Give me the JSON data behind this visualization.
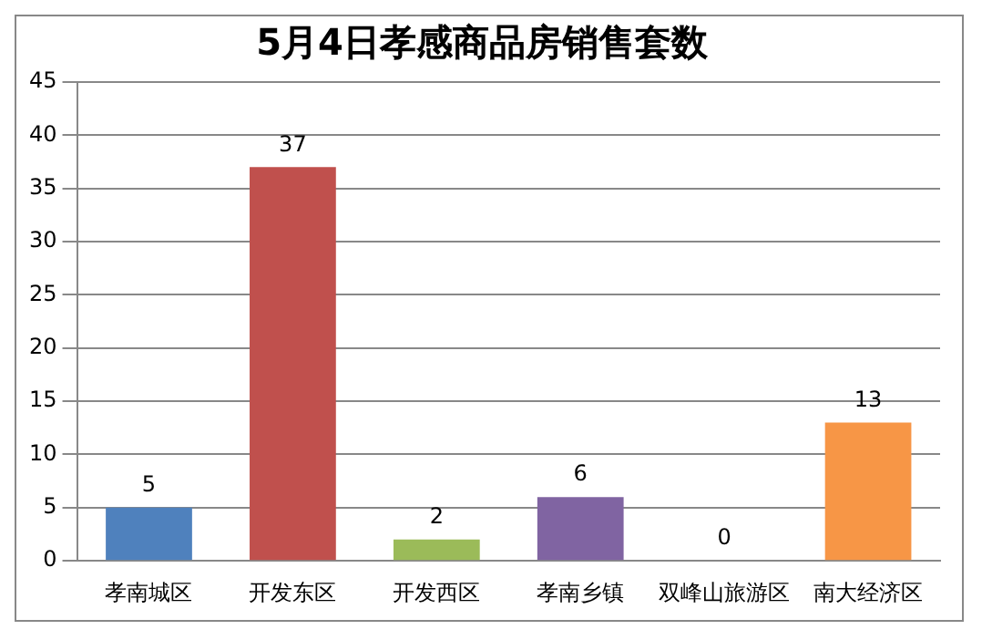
{
  "chart_data": {
    "type": "bar",
    "title": "5月4日孝感商品房销售套数",
    "categories": [
      "孝南城区",
      "开发东区",
      "开发西区",
      "孝南乡镇",
      "双峰山旅游区",
      "南大经济区"
    ],
    "values": [
      5,
      37,
      2,
      6,
      0,
      13
    ],
    "colors": [
      "#4f81bd",
      "#c0504d",
      "#9bbb59",
      "#8064a2",
      "#4bacc6",
      "#f79646"
    ],
    "ylim": [
      0,
      45
    ],
    "yticks": [
      0,
      5,
      10,
      15,
      20,
      25,
      30,
      35,
      40,
      45
    ],
    "grid": "y",
    "data_labels": true
  }
}
